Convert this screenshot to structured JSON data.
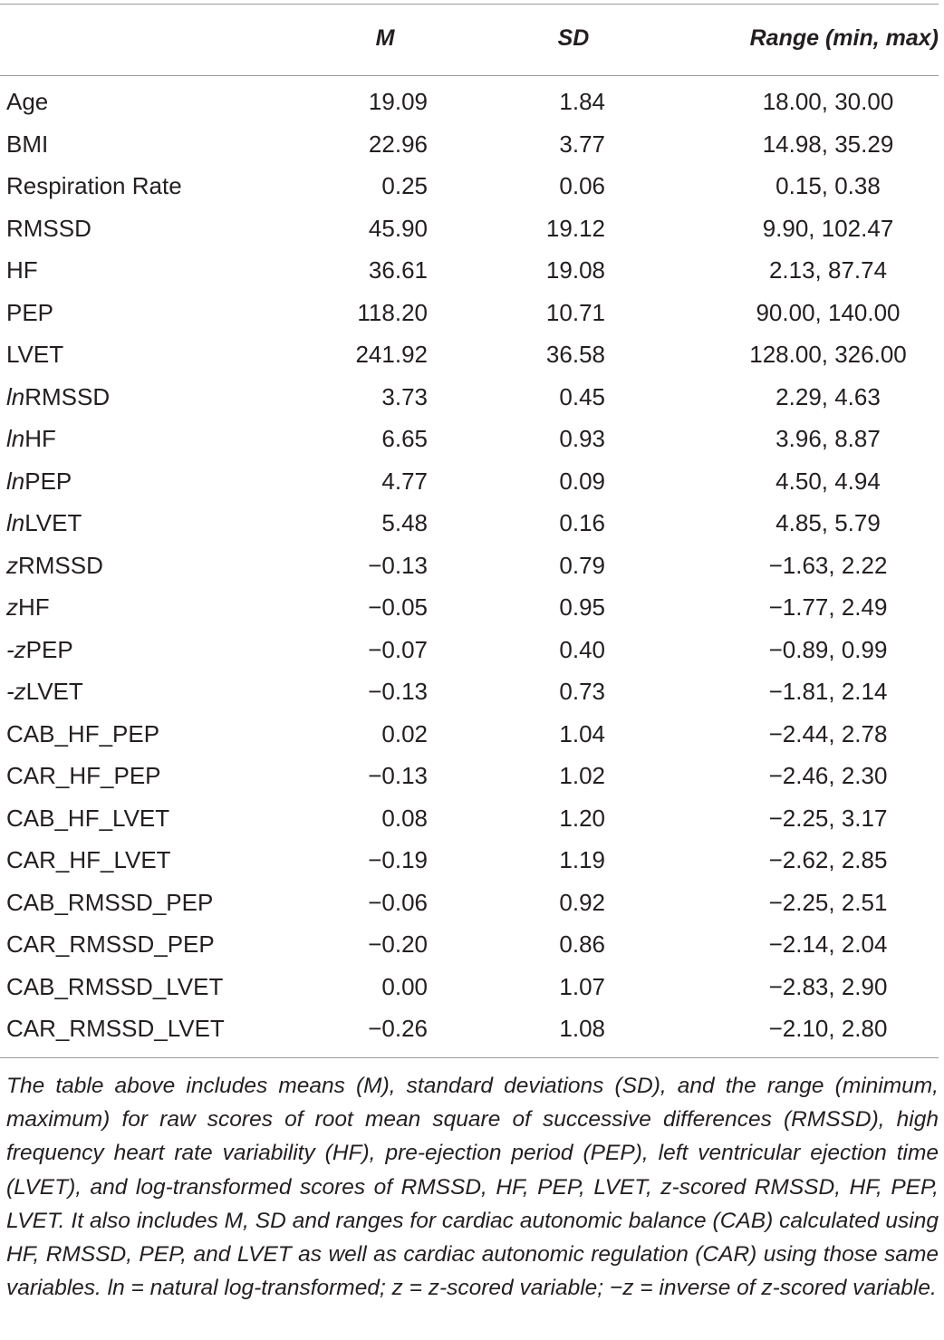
{
  "table": {
    "headers": {
      "label": "",
      "m": "M",
      "sd": "SD",
      "range": "Range (min, max)"
    },
    "rows": [
      {
        "prefix": "",
        "name": "Age",
        "m": "19.09",
        "sd": "1.84",
        "range": "18.00, 30.00"
      },
      {
        "prefix": "",
        "name": "BMI",
        "m": "22.96",
        "sd": "3.77",
        "range": "14.98, 35.29"
      },
      {
        "prefix": "",
        "name": "Respiration Rate",
        "m": "0.25",
        "sd": "0.06",
        "range": "0.15, 0.38"
      },
      {
        "prefix": "",
        "name": "RMSSD",
        "m": "45.90",
        "sd": "19.12",
        "range": "9.90, 102.47"
      },
      {
        "prefix": "",
        "name": "HF",
        "m": "36.61",
        "sd": "19.08",
        "range": "2.13, 87.74"
      },
      {
        "prefix": "",
        "name": "PEP",
        "m": "118.20",
        "sd": "10.71",
        "range": "90.00, 140.00"
      },
      {
        "prefix": "",
        "name": "LVET",
        "m": "241.92",
        "sd": "36.58",
        "range": "128.00, 326.00"
      },
      {
        "prefix": "ln",
        "name": "RMSSD",
        "m": "3.73",
        "sd": "0.45",
        "range": "2.29, 4.63"
      },
      {
        "prefix": "ln",
        "name": "HF",
        "m": "6.65",
        "sd": "0.93",
        "range": "3.96, 8.87"
      },
      {
        "prefix": "ln",
        "name": "PEP",
        "m": "4.77",
        "sd": "0.09",
        "range": "4.50, 4.94"
      },
      {
        "prefix": "ln",
        "name": "LVET",
        "m": "5.48",
        "sd": "0.16",
        "range": "4.85, 5.79"
      },
      {
        "prefix": "z",
        "name": "RMSSD",
        "m": "−0.13",
        "sd": "0.79",
        "range": "−1.63, 2.22"
      },
      {
        "prefix": "z",
        "name": "HF",
        "m": "−0.05",
        "sd": "0.95",
        "range": "−1.77, 2.49"
      },
      {
        "prefix": "-z",
        "name": "PEP",
        "m": "−0.07",
        "sd": "0.40",
        "range": "−0.89, 0.99"
      },
      {
        "prefix": "-z",
        "name": "LVET",
        "m": "−0.13",
        "sd": "0.73",
        "range": "−1.81, 2.14"
      },
      {
        "prefix": "",
        "name": "CAB_HF_PEP",
        "m": "0.02",
        "sd": "1.04",
        "range": "−2.44, 2.78"
      },
      {
        "prefix": "",
        "name": "CAR_HF_PEP",
        "m": "−0.13",
        "sd": "1.02",
        "range": "−2.46, 2.30"
      },
      {
        "prefix": "",
        "name": "CAB_HF_LVET",
        "m": "0.08",
        "sd": "1.20",
        "range": "−2.25, 3.17"
      },
      {
        "prefix": "",
        "name": "CAR_HF_LVET",
        "m": "−0.19",
        "sd": "1.19",
        "range": "−2.62, 2.85"
      },
      {
        "prefix": "",
        "name": "CAB_RMSSD_PEP",
        "m": "−0.06",
        "sd": "0.92",
        "range": "−2.25, 2.51"
      },
      {
        "prefix": "",
        "name": "CAR_RMSSD_PEP",
        "m": "−0.20",
        "sd": "0.86",
        "range": "−2.14, 2.04"
      },
      {
        "prefix": "",
        "name": "CAB_RMSSD_LVET",
        "m": "0.00",
        "sd": "1.07",
        "range": "−2.83, 2.90"
      },
      {
        "prefix": "",
        "name": "CAR_RMSSD_LVET",
        "m": "−0.26",
        "sd": "1.08",
        "range": "−2.10, 2.80"
      }
    ]
  },
  "footnote": "The table above includes means (M), standard deviations (SD), and the range (minimum, maximum) for raw scores of root mean square of successive differences (RMSSD), high frequency heart rate variability (HF), pre-ejection period (PEP), left ventricular ejection time (LVET), and log-transformed scores of RMSSD, HF, PEP, LVET, z-scored RMSSD, HF, PEP, LVET. It also includes M, SD and ranges for cardiac autonomic balance (CAB) calculated using HF, RMSSD, PEP, and LVET as well as cardiac autonomic regulation (CAR) using those same variables. ln = natural log-transformed; z = z-scored variable; −z = inverse of z-scored variable."
}
